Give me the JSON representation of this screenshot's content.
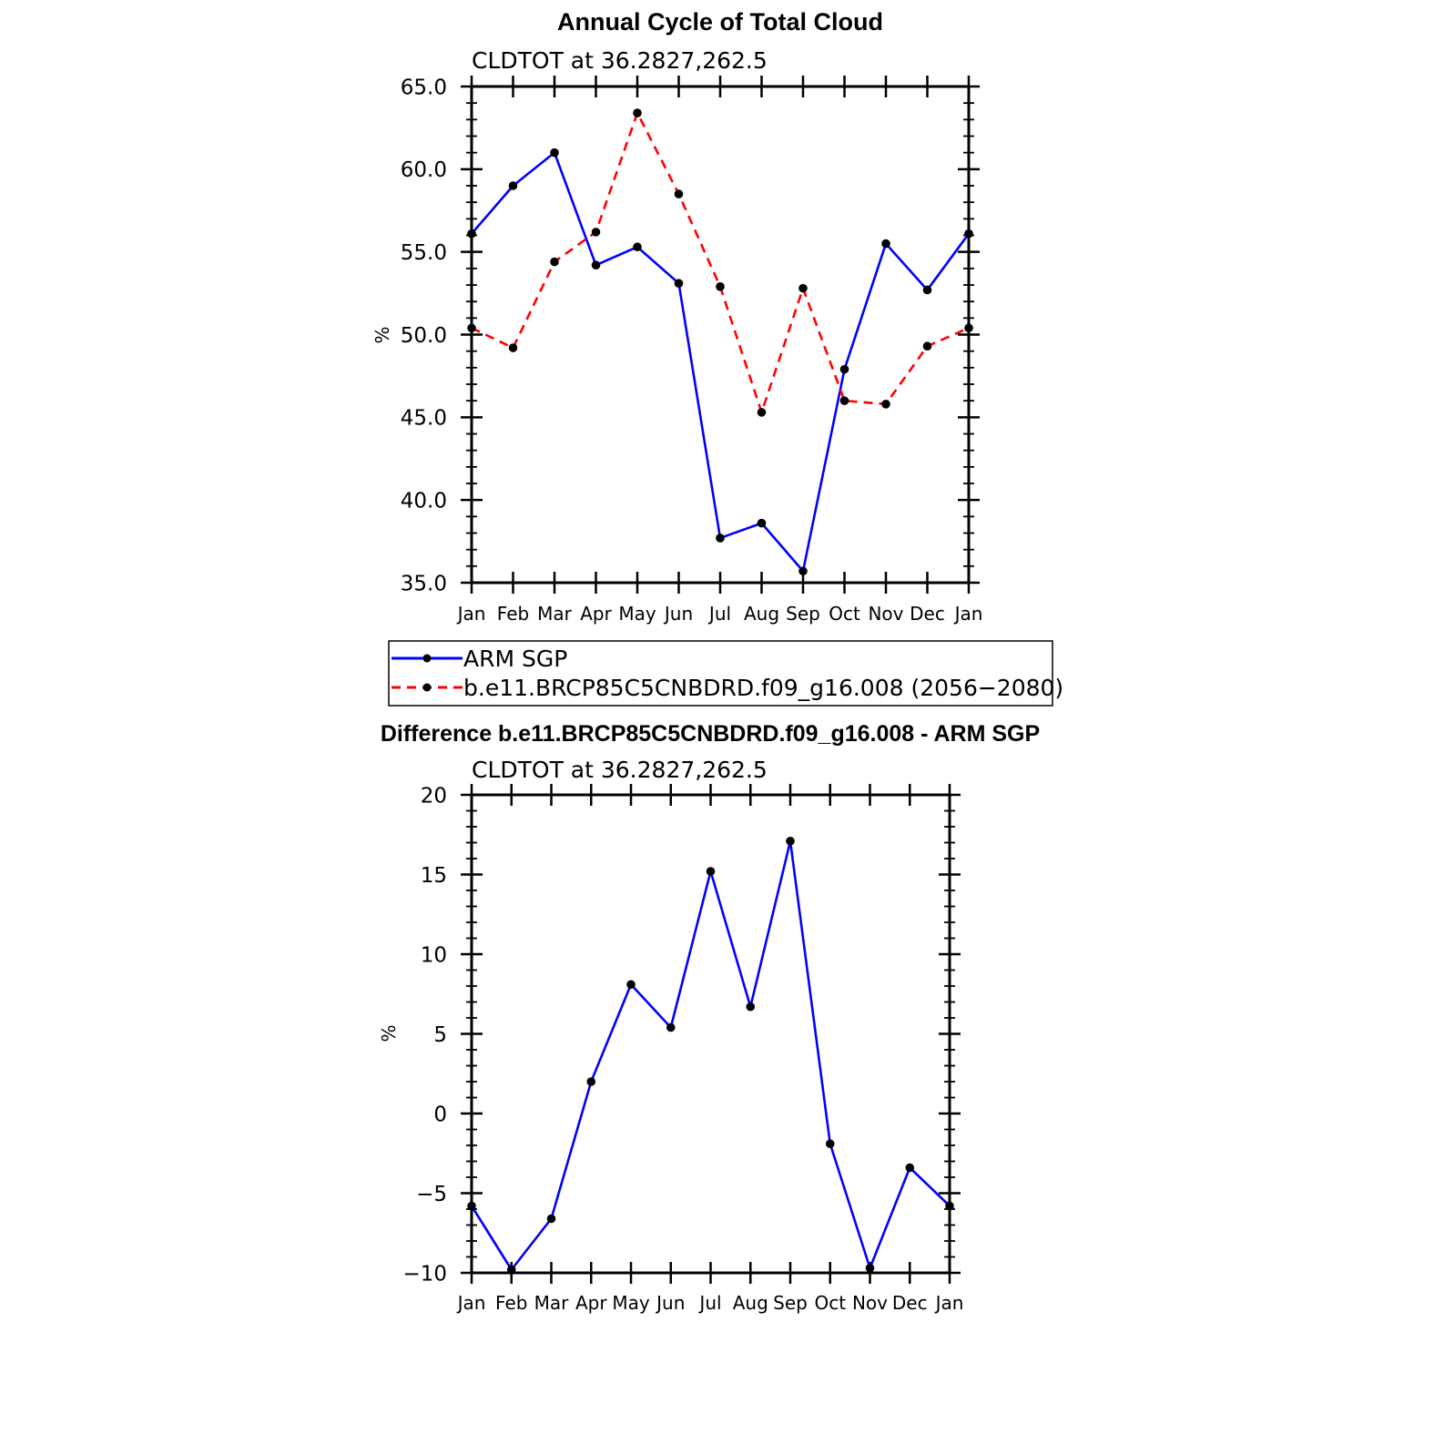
{
  "chart_data": [
    {
      "type": "line",
      "title": "Annual Cycle of Total Cloud",
      "subtitle": "CLDTOT at 36.2827,262.5",
      "xlabel": "",
      "ylabel": "%",
      "categories": [
        "Jan",
        "Feb",
        "Mar",
        "Apr",
        "May",
        "Jun",
        "Jul",
        "Aug",
        "Sep",
        "Oct",
        "Nov",
        "Dec",
        "Jan"
      ],
      "ylim": [
        35.0,
        65.0
      ],
      "yticks": [
        35.0,
        40.0,
        45.0,
        50.0,
        55.0,
        60.0,
        65.0
      ],
      "ytick_labels": [
        "35.0",
        "40.0",
        "45.0",
        "50.0",
        "55.0",
        "60.0",
        "65.0"
      ],
      "series": [
        {
          "name": "ARM SGP",
          "color": "#0000ff",
          "dash": "solid",
          "values": [
            56.1,
            59.0,
            61.0,
            54.2,
            55.3,
            53.1,
            37.7,
            38.6,
            35.7,
            47.9,
            55.5,
            52.7,
            56.1
          ]
        },
        {
          "name": "b.e11.BRCP85C5CNBDRD.f09_g16.008 (2056−2080)",
          "color": "#ff0000",
          "dash": "dashed",
          "values": [
            50.4,
            49.2,
            54.4,
            56.2,
            63.4,
            58.5,
            52.9,
            45.3,
            52.8,
            46.0,
            45.8,
            49.3,
            50.4
          ]
        }
      ],
      "legend": "below"
    },
    {
      "type": "line",
      "title": "Difference b.e11.BRCP85C5CNBDRD.f09_g16.008 - ARM SGP",
      "subtitle": "CLDTOT at 36.2827,262.5",
      "xlabel": "",
      "ylabel": "%",
      "categories": [
        "Jan",
        "Feb",
        "Mar",
        "Apr",
        "May",
        "Jun",
        "Jul",
        "Aug",
        "Sep",
        "Oct",
        "Nov",
        "Dec",
        "Jan"
      ],
      "ylim": [
        -10,
        20
      ],
      "yticks": [
        -10,
        -5,
        0,
        5,
        10,
        15,
        20
      ],
      "ytick_labels": [
        "−10",
        "−5",
        "0",
        "5",
        "10",
        "15",
        "20"
      ],
      "series": [
        {
          "name": "Difference",
          "color": "#0000ff",
          "dash": "solid",
          "values": [
            -5.8,
            -9.8,
            -6.6,
            2.0,
            8.1,
            5.4,
            15.2,
            6.7,
            17.1,
            -1.9,
            -9.7,
            -3.4,
            -5.8
          ]
        }
      ]
    }
  ]
}
